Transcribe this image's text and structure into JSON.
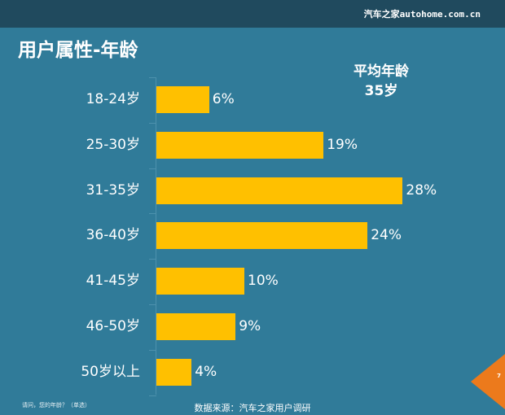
{
  "header": {
    "brand": "汽车之家autohome.com.cn",
    "title": "用户属性-年龄"
  },
  "summary": {
    "label": "平均年龄",
    "value": "35岁"
  },
  "footer": {
    "question": "请问，您的年龄？（单选）",
    "source": "数据来源：汽车之家用户调研",
    "page_number": "7"
  },
  "colors": {
    "background": "#307b99",
    "topbar": "#204a5e",
    "bar": "#ffc000",
    "page_marker": "#ec7a1c"
  },
  "chart_data": {
    "type": "bar",
    "orientation": "horizontal",
    "title": "用户属性-年龄",
    "xlabel": "",
    "ylabel": "",
    "categories": [
      "18-24岁",
      "25-30岁",
      "31-35岁",
      "36-40岁",
      "41-45岁",
      "46-50岁",
      "50岁以上"
    ],
    "values": [
      6,
      19,
      28,
      24,
      10,
      9,
      4
    ],
    "labels": [
      "6%",
      "19%",
      "28%",
      "24%",
      "10%",
      "9%",
      "4%"
    ],
    "unit": "%",
    "grid": false,
    "legend": null,
    "annotation": "平均年龄 35岁"
  }
}
